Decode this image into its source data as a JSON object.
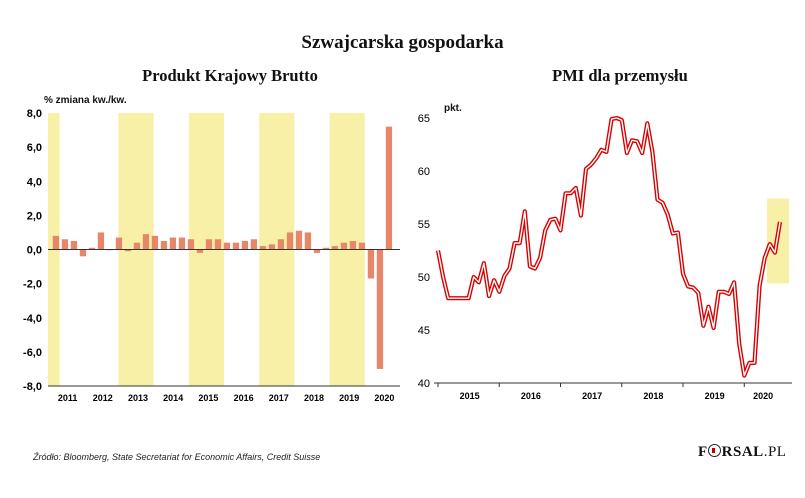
{
  "title": "Szwajcarska gospodarka",
  "source": "Źródło: Bloomberg, State Secretariat for Economic Affairs, Credit Suisse",
  "logo": {
    "first": "F",
    "last": "RSAL",
    "suffix": ".PL"
  },
  "colors": {
    "band": "#f7f0a6",
    "bar": "#e8866a",
    "line_outer": "#d90000",
    "line_inner": "#ffffff",
    "axis": "#333333"
  },
  "chart_data": [
    {
      "type": "bar",
      "title": "Produkt Krajowy Brutto",
      "ylabel": "% zmiana kw./kw.",
      "ylim": [
        -8,
        8
      ],
      "yticks": [
        "8,0",
        "6,0",
        "4,0",
        "2,0",
        "0,0",
        "-2,0",
        "-4,0",
        "-6,0",
        "-8,0"
      ],
      "year_labels": [
        "2011",
        "2012",
        "2013",
        "2014",
        "2015",
        "2016",
        "2017",
        "2018",
        "2019",
        "2020"
      ],
      "values": [
        0.8,
        0.6,
        0.5,
        -0.4,
        0.1,
        1.0,
        0.0,
        0.7,
        -0.1,
        0.4,
        0.9,
        0.8,
        0.5,
        0.7,
        0.7,
        0.6,
        -0.2,
        0.6,
        0.6,
        0.4,
        0.4,
        0.5,
        0.6,
        0.2,
        0.3,
        0.6,
        1.0,
        1.1,
        1.0,
        -0.2,
        0.1,
        0.2,
        0.4,
        0.5,
        0.4,
        -1.7,
        -7.0,
        7.2
      ]
    },
    {
      "type": "line",
      "title": "PMI dla przemysłu",
      "ylabel": "pkt.",
      "ylim": [
        40,
        65
      ],
      "yticks": [
        "65",
        "60",
        "55",
        "50",
        "45",
        "40"
      ],
      "year_labels": [
        "2015",
        "2016",
        "2017",
        "2018",
        "2019",
        "2020"
      ],
      "highlight": "ostatnie odczyty 2020",
      "values": [
        52.5,
        50.0,
        48.0,
        48.0,
        48.0,
        48.0,
        48.0,
        50.0,
        49.5,
        51.3,
        48.2,
        49.7,
        48.6,
        50.1,
        50.8,
        53.2,
        53.2,
        56.2,
        51.0,
        50.8,
        51.8,
        54.4,
        55.4,
        55.5,
        54.4,
        57.9,
        57.9,
        58.4,
        55.8,
        60.2,
        60.6,
        61.2,
        62.0,
        61.8,
        64.9,
        65.0,
        64.8,
        61.7,
        62.9,
        62.8,
        61.7,
        64.5,
        61.8,
        57.3,
        57.0,
        55.9,
        54.1,
        54.2,
        50.3,
        49.1,
        49.0,
        48.5,
        45.4,
        47.2,
        45.2,
        48.6,
        48.6,
        48.4,
        49.5,
        43.7,
        40.7,
        41.9,
        41.9,
        49.2,
        51.8,
        53.1,
        52.3,
        55.2
      ]
    }
  ]
}
